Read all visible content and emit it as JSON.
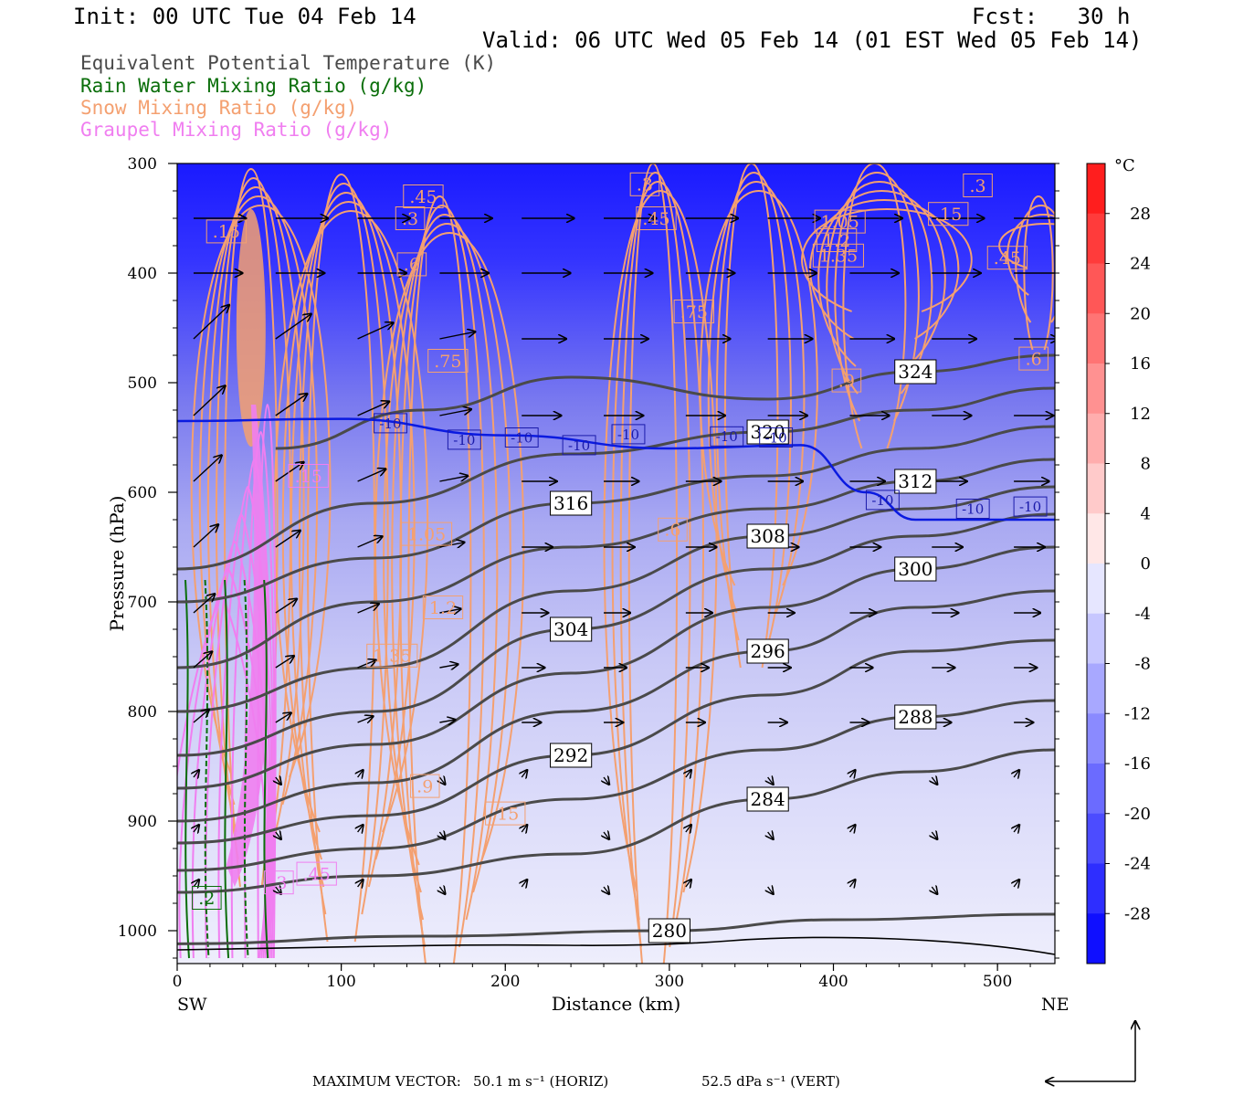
{
  "header": {
    "init": "Init: 00 UTC Tue 04 Feb 14",
    "fcst": "Fcst:   30 h",
    "valid": "Valid: 06 UTC Wed 05 Feb 14 (01 EST Wed 05 Feb 14)"
  },
  "legend": [
    {
      "label": "Equivalent Potential Temperature (K)",
      "color": "#4a4a4a"
    },
    {
      "label": "Rain Water Mixing Ratio (g/kg)",
      "color": "#0a6e0a"
    },
    {
      "label": "Snow Mixing Ratio (g/kg)",
      "color": "#f4a070"
    },
    {
      "label": "Graupel Mixing Ratio (g/kg)",
      "color": "#f07ef0"
    }
  ],
  "footer": {
    "max_vector_label": "MAXIMUM VECTOR:",
    "horiz": "50.1 m s⁻¹ (HORIZ)",
    "vert": "52.5 dPa s⁻¹ (VERT)"
  },
  "chart_data": {
    "type": "heatmap",
    "xlabel": "Distance (km)",
    "ylabel": "Pressure (hPa)",
    "xlim": [
      0,
      535
    ],
    "ylim": [
      1030,
      300
    ],
    "x_ticks": [
      0,
      100,
      200,
      300,
      400,
      500
    ],
    "y_ticks": [
      300,
      400,
      500,
      600,
      700,
      800,
      900,
      1000
    ],
    "x_end_labels": {
      "left": "SW",
      "right": "NE"
    },
    "colorbar": {
      "unit": "°C",
      "ticks": [
        28,
        24,
        20,
        16,
        12,
        8,
        4,
        0,
        -4,
        -8,
        -12,
        -16,
        -20,
        -24,
        -28
      ],
      "range": [
        -32,
        32
      ]
    },
    "theta_e_contours": [
      {
        "value": 280,
        "label": "280",
        "pts": [
          [
            0,
            1012
          ],
          [
            150,
            1005
          ],
          [
            300,
            1000
          ],
          [
            400,
            990
          ],
          [
            535,
            985
          ]
        ]
      },
      {
        "value": 284,
        "label": "284",
        "pts": [
          [
            0,
            965
          ],
          [
            120,
            950
          ],
          [
            240,
            930
          ],
          [
            360,
            880
          ],
          [
            450,
            855
          ],
          [
            535,
            835
          ]
        ]
      },
      {
        "value": 288,
        "label": "288",
        "pts": [
          [
            0,
            945
          ],
          [
            120,
            925
          ],
          [
            240,
            880
          ],
          [
            360,
            835
          ],
          [
            450,
            805
          ],
          [
            535,
            790
          ]
        ]
      },
      {
        "value": 292,
        "label": "292",
        "pts": [
          [
            0,
            920
          ],
          [
            120,
            895
          ],
          [
            240,
            840
          ],
          [
            360,
            785
          ],
          [
            450,
            745
          ],
          [
            535,
            735
          ]
        ]
      },
      {
        "value": 296,
        "label": "296",
        "pts": [
          [
            0,
            900
          ],
          [
            120,
            865
          ],
          [
            240,
            800
          ],
          [
            360,
            745
          ],
          [
            450,
            705
          ],
          [
            535,
            690
          ]
        ]
      },
      {
        "value": 300,
        "label": "300",
        "pts": [
          [
            0,
            870
          ],
          [
            120,
            830
          ],
          [
            240,
            765
          ],
          [
            360,
            705
          ],
          [
            450,
            670
          ],
          [
            535,
            650
          ]
        ]
      },
      {
        "value": 304,
        "label": "304",
        "pts": [
          [
            0,
            840
          ],
          [
            120,
            800
          ],
          [
            240,
            725
          ],
          [
            360,
            670
          ],
          [
            450,
            640
          ],
          [
            535,
            620
          ]
        ]
      },
      {
        "value": 308,
        "label": "308",
        "pts": [
          [
            0,
            800
          ],
          [
            120,
            760
          ],
          [
            240,
            690
          ],
          [
            360,
            640
          ],
          [
            450,
            615
          ],
          [
            535,
            595
          ]
        ]
      },
      {
        "value": 312,
        "label": "312",
        "pts": [
          [
            0,
            760
          ],
          [
            120,
            700
          ],
          [
            240,
            650
          ],
          [
            360,
            615
          ],
          [
            450,
            590
          ],
          [
            535,
            570
          ]
        ]
      },
      {
        "value": 316,
        "label": "316",
        "pts": [
          [
            0,
            700
          ],
          [
            120,
            660
          ],
          [
            240,
            610
          ],
          [
            360,
            585
          ],
          [
            450,
            560
          ],
          [
            535,
            540
          ]
        ]
      },
      {
        "value": 320,
        "label": "320",
        "pts": [
          [
            0,
            670
          ],
          [
            120,
            610
          ],
          [
            240,
            565
          ],
          [
            360,
            545
          ],
          [
            450,
            525
          ],
          [
            535,
            505
          ]
        ]
      },
      {
        "value": 324,
        "label": "324",
        "pts": [
          [
            60,
            560
          ],
          [
            150,
            525
          ],
          [
            240,
            495
          ],
          [
            360,
            515
          ],
          [
            450,
            490
          ],
          [
            535,
            475
          ]
        ]
      }
    ],
    "isotherm_minus10": {
      "label": "-10",
      "pts": [
        [
          0,
          535
        ],
        [
          100,
          533
        ],
        [
          200,
          548
        ],
        [
          300,
          560
        ],
        [
          380,
          557
        ],
        [
          420,
          600
        ],
        [
          450,
          625
        ],
        [
          535,
          625
        ]
      ]
    },
    "snow_labels": [
      ".15",
      ".3",
      ".45",
      ".6",
      ".75",
      "1.05",
      "1.2",
      "1.35",
      ".9"
    ],
    "graupel_labels": [
      ".15",
      ".3",
      ".45"
    ],
    "rain_labels": [
      ".2"
    ],
    "wind_arrows_max": {
      "horiz": 50.1,
      "vert": 52.5
    }
  }
}
